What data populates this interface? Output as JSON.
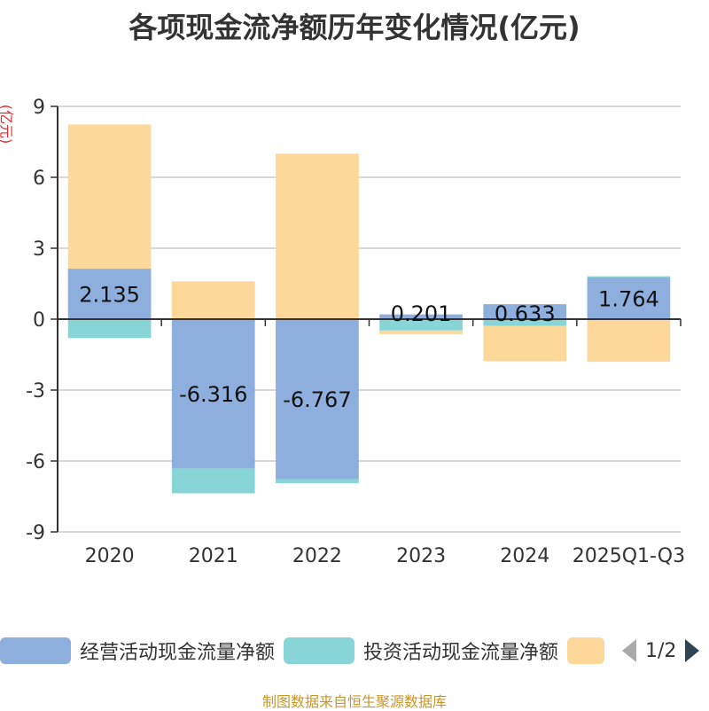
{
  "title": "各项现金流净额历年变化情况(亿元)",
  "unit_label": "(亿元)",
  "footer": "制图数据来自恒生聚源数据库",
  "legend": {
    "items": [
      {
        "label": "经营活动现金流量净额",
        "color": "#8eaedd"
      },
      {
        "label": "投资活动现金流量净额",
        "color": "#88d5d8"
      },
      {
        "label": "",
        "color": "#fdd89a"
      }
    ],
    "page_text": "1/2"
  },
  "chart_data": {
    "type": "bar",
    "stacked": true,
    "categories": [
      "2020",
      "2021",
      "2022",
      "2023",
      "2024",
      "2025Q1-Q3"
    ],
    "yticks": [
      9,
      6,
      3,
      0,
      -3,
      -6,
      -9
    ],
    "ylim": [
      -9,
      9
    ],
    "grid": true,
    "series": [
      {
        "name": "经营活动现金流量净额",
        "color": "#8eaedd",
        "values": [
          2.135,
          -6.316,
          -6.767,
          0.201,
          0.633,
          1.764
        ],
        "labels": [
          "2.135",
          "-6.316",
          "-6.767",
          "0.201",
          "0.633",
          "1.764"
        ]
      },
      {
        "name": "投资活动现金流量净额",
        "color": "#88d5d8",
        "values": [
          -0.8,
          -1.05,
          -0.17,
          -0.48,
          -0.28,
          0.05
        ]
      },
      {
        "color": "#fdd89a",
        "values": [
          6.1,
          1.6,
          7.0,
          -0.15,
          -1.5,
          -1.8
        ]
      }
    ]
  }
}
